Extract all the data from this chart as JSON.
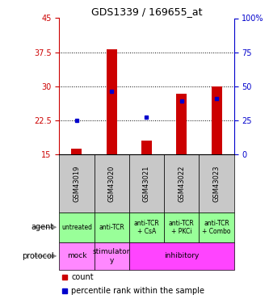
{
  "title": "GDS1339 / 169655_at",
  "samples": [
    "GSM43019",
    "GSM43020",
    "GSM43021",
    "GSM43022",
    "GSM43023"
  ],
  "bar_bottoms": [
    15,
    15,
    15,
    15,
    15
  ],
  "bar_tops": [
    16.3,
    38.2,
    18.0,
    28.3,
    30.0
  ],
  "blue_dot_y": [
    22.5,
    28.9,
    23.2,
    26.8,
    27.3
  ],
  "bar_color": "#cc0000",
  "dot_color": "#0000cc",
  "ylim_left": [
    15,
    45
  ],
  "ylim_right": [
    0,
    100
  ],
  "yticks_left": [
    15,
    22.5,
    30,
    37.5,
    45
  ],
  "yticks_right": [
    0,
    25,
    50,
    75,
    100
  ],
  "ytick_labels_left": [
    "15",
    "22.5",
    "30",
    "37.5",
    "45"
  ],
  "ytick_labels_right": [
    "0",
    "25",
    "50",
    "75",
    "100%"
  ],
  "left_tick_color": "#cc0000",
  "right_tick_color": "#0000cc",
  "grid_yticks": [
    22.5,
    30,
    37.5
  ],
  "agent_labels": [
    "untreated",
    "anti-TCR",
    "anti-TCR\n+ CsA",
    "anti-TCR\n+ PKCi",
    "anti-TCR\n+ Combo"
  ],
  "agent_color": "#99ff99",
  "protocol_spans": [
    [
      0,
      1,
      "mock",
      "#ff88ff"
    ],
    [
      1,
      2,
      "stimulator\ny",
      "#ff88ff"
    ],
    [
      2,
      5,
      "inhibitory",
      "#ff44ff"
    ]
  ],
  "sample_bg_color": "#c8c8c8",
  "legend_count_color": "#cc0000",
  "legend_pct_color": "#0000cc",
  "bar_width": 0.3
}
